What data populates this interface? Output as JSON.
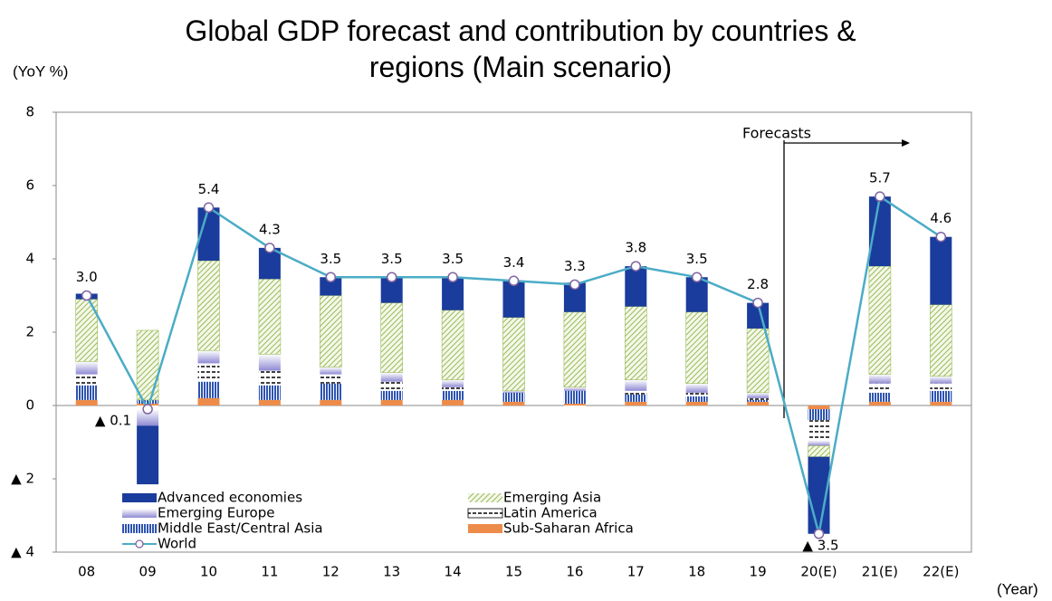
{
  "chart_data": {
    "type": "bar",
    "stacked": true,
    "title": "Global GDP forecast and contribution by countries & regions (Main scenario)",
    "y_label": "(YoY %)",
    "x_label": "(Year)",
    "annotation": "Forecasts",
    "categories": [
      "08",
      "09",
      "10",
      "11",
      "12",
      "13",
      "14",
      "15",
      "16",
      "17",
      "18",
      "19",
      "20(E)",
      "21(E)",
      "22(E)"
    ],
    "ylim": [
      -4,
      8
    ],
    "yticks": [
      {
        "value": -4,
        "label": "▲ 4"
      },
      {
        "value": -2,
        "label": "▲ 2"
      },
      0,
      2,
      4,
      6,
      8
    ],
    "series": [
      {
        "name": "Sub-Saharan Africa",
        "color": "#ed8c4a",
        "values": [
          0.15,
          0.05,
          0.2,
          0.15,
          0.15,
          0.15,
          0.15,
          0.1,
          0.05,
          0.1,
          0.1,
          0.1,
          -0.1,
          0.1,
          0.1
        ]
      },
      {
        "name": "Middle East/Central Asia",
        "color": "#2e54b0",
        "values": [
          0.4,
          0.1,
          0.45,
          0.4,
          0.45,
          0.25,
          0.25,
          0.25,
          0.35,
          0.2,
          0.15,
          0.05,
          -0.3,
          0.25,
          0.3
        ]
      },
      {
        "name": "Latin America",
        "color": "#000000",
        "values": [
          0.3,
          -0.1,
          0.5,
          0.4,
          0.25,
          0.25,
          0.1,
          0.0,
          -0.05,
          0.1,
          0.1,
          0.05,
          -0.55,
          0.25,
          0.2
        ]
      },
      {
        "name": "Emerging Europe",
        "color": "#8f8ad3",
        "values": [
          0.35,
          -0.45,
          0.35,
          0.45,
          0.2,
          0.25,
          0.2,
          0.05,
          0.1,
          0.3,
          0.25,
          0.15,
          -0.15,
          0.25,
          0.2
        ]
      },
      {
        "name": "Emerging Asia",
        "color": "#9bbb59",
        "values": [
          1.7,
          1.9,
          2.45,
          2.05,
          1.95,
          1.9,
          1.9,
          2.0,
          2.05,
          2.0,
          1.95,
          1.75,
          -0.3,
          2.95,
          1.95
        ]
      },
      {
        "name": "Advanced economies",
        "color": "#1a3c9c",
        "values": [
          0.15,
          -1.6,
          1.45,
          0.85,
          0.5,
          0.7,
          0.9,
          1.0,
          0.8,
          1.1,
          0.95,
          0.7,
          -2.1,
          1.9,
          1.85
        ]
      },
      {
        "name": "World",
        "type": "line",
        "color": "#4bacc6",
        "values": [
          3.0,
          -0.1,
          5.4,
          4.3,
          3.5,
          3.5,
          3.5,
          3.4,
          3.3,
          3.8,
          3.5,
          2.8,
          -3.5,
          5.7,
          4.6
        ],
        "value_labels": [
          "3.0",
          "▲ 0.1",
          "5.4",
          "4.3",
          "3.5",
          "3.5",
          "3.5",
          "3.4",
          "3.3",
          "3.8",
          "3.5",
          "2.8",
          "▲ 3.5",
          "5.7",
          "4.6"
        ]
      }
    ]
  }
}
